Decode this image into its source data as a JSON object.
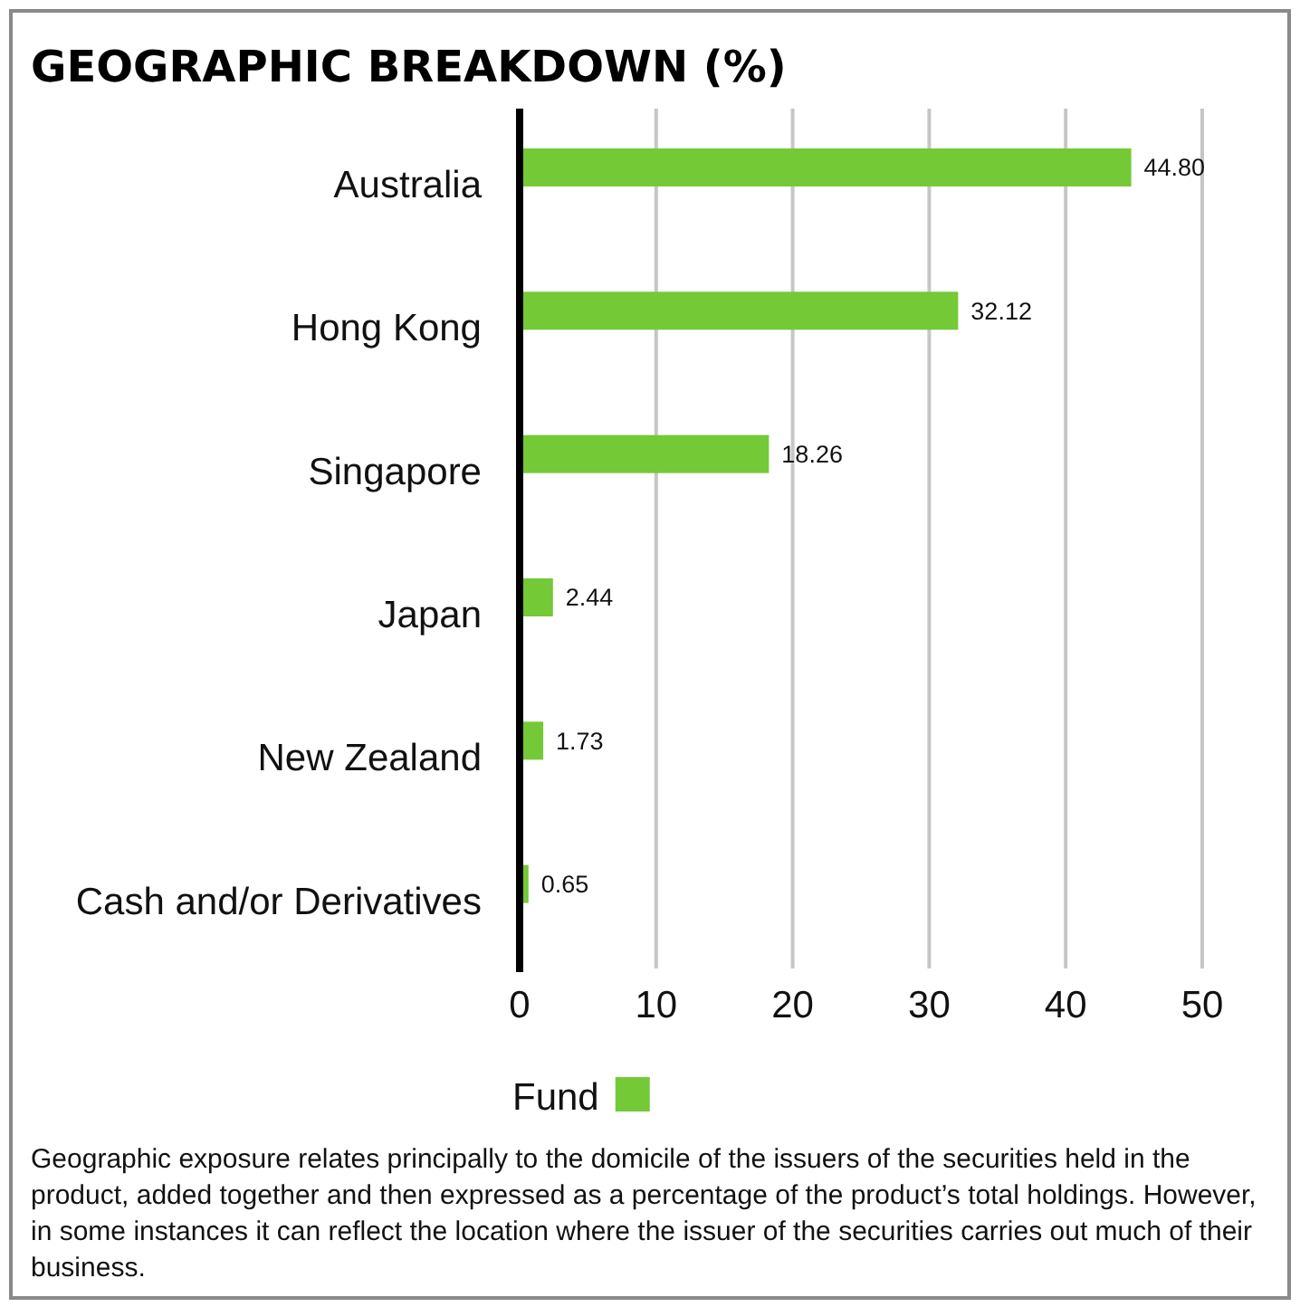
{
  "chart_data": {
    "type": "bar",
    "orientation": "horizontal",
    "title": "GEOGRAPHIC BREAKDOWN (%)",
    "categories": [
      "Australia",
      "Hong Kong",
      "Singapore",
      "Japan",
      "New Zealand",
      "Cash and/or Derivatives"
    ],
    "series": [
      {
        "name": "Fund",
        "color": "#73c936",
        "values": [
          44.8,
          32.12,
          18.26,
          2.44,
          1.73,
          0.65
        ],
        "value_labels": [
          "44.80",
          "32.12",
          "18.26",
          "2.44",
          "1.73",
          "0.65"
        ]
      }
    ],
    "xlim": [
      0,
      50
    ],
    "xticks": [
      0,
      10,
      20,
      30,
      40,
      50
    ],
    "grid": "x",
    "legend": "bottom",
    "annotations": [
      "Geographic exposure relates principally to the domicile of the issuers of the securities held in the product, added together and then expressed as a percentage of the product’s total holdings. However, in some instances it can reflect the location where the issuer of the securities carries out much of their business."
    ]
  }
}
